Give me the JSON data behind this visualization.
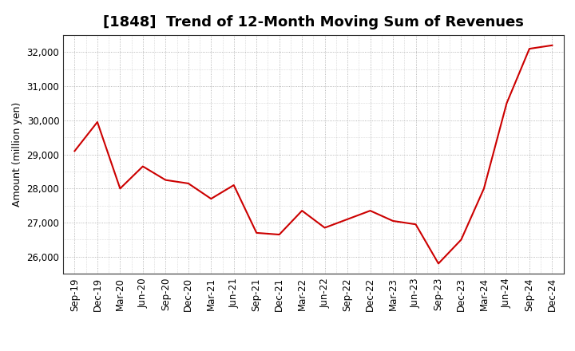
{
  "title": "[1848]  Trend of 12-Month Moving Sum of Revenues",
  "ylabel": "Amount (million yen)",
  "line_color": "#cc0000",
  "background_color": "#ffffff",
  "grid_color": "#999999",
  "x_labels": [
    "Sep-19",
    "Dec-19",
    "Mar-20",
    "Jun-20",
    "Sep-20",
    "Dec-20",
    "Mar-21",
    "Jun-21",
    "Sep-21",
    "Dec-21",
    "Mar-22",
    "Jun-22",
    "Sep-22",
    "Dec-22",
    "Mar-23",
    "Jun-23",
    "Sep-23",
    "Dec-23",
    "Mar-24",
    "Jun-24",
    "Sep-24",
    "Dec-24"
  ],
  "values": [
    29100,
    29950,
    28000,
    28650,
    28250,
    28150,
    27700,
    28100,
    26700,
    26650,
    27350,
    26850,
    27100,
    27350,
    27050,
    26950,
    25800,
    26500,
    28000,
    30500,
    32100,
    32200
  ],
  "ylim": [
    25500,
    32500
  ],
  "yticks": [
    26000,
    27000,
    28000,
    29000,
    30000,
    31000,
    32000
  ],
  "title_fontsize": 13,
  "label_fontsize": 9,
  "tick_fontsize": 8.5
}
